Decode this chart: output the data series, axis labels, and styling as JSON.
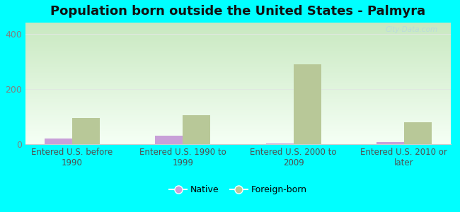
{
  "title": "Population born outside the United States - Palmyra",
  "categories": [
    "Entered U.S. before\n1990",
    "Entered U.S. 1990 to\n1999",
    "Entered U.S. 2000 to\n2009",
    "Entered U.S. 2010 or\nlater"
  ],
  "native_values": [
    20,
    30,
    2,
    8
  ],
  "foreign_values": [
    95,
    105,
    290,
    80
  ],
  "native_color": "#c8a0d8",
  "foreign_color": "#b8c898",
  "background_color": "#00ffff",
  "gradient_top": "#c8e8c0",
  "gradient_bottom": "#f5fff5",
  "ylim": [
    0,
    440
  ],
  "yticks": [
    0,
    200,
    400
  ],
  "bar_width": 0.25,
  "title_fontsize": 13,
  "tick_fontsize": 9,
  "xlabel_fontsize": 8.5,
  "watermark": "City-Data.com",
  "watermark_color": "#b8d8e0",
  "grid_color": "#e0e8e0",
  "spine_color": "#cccccc",
  "tick_color": "#808080",
  "label_color": "#505050"
}
